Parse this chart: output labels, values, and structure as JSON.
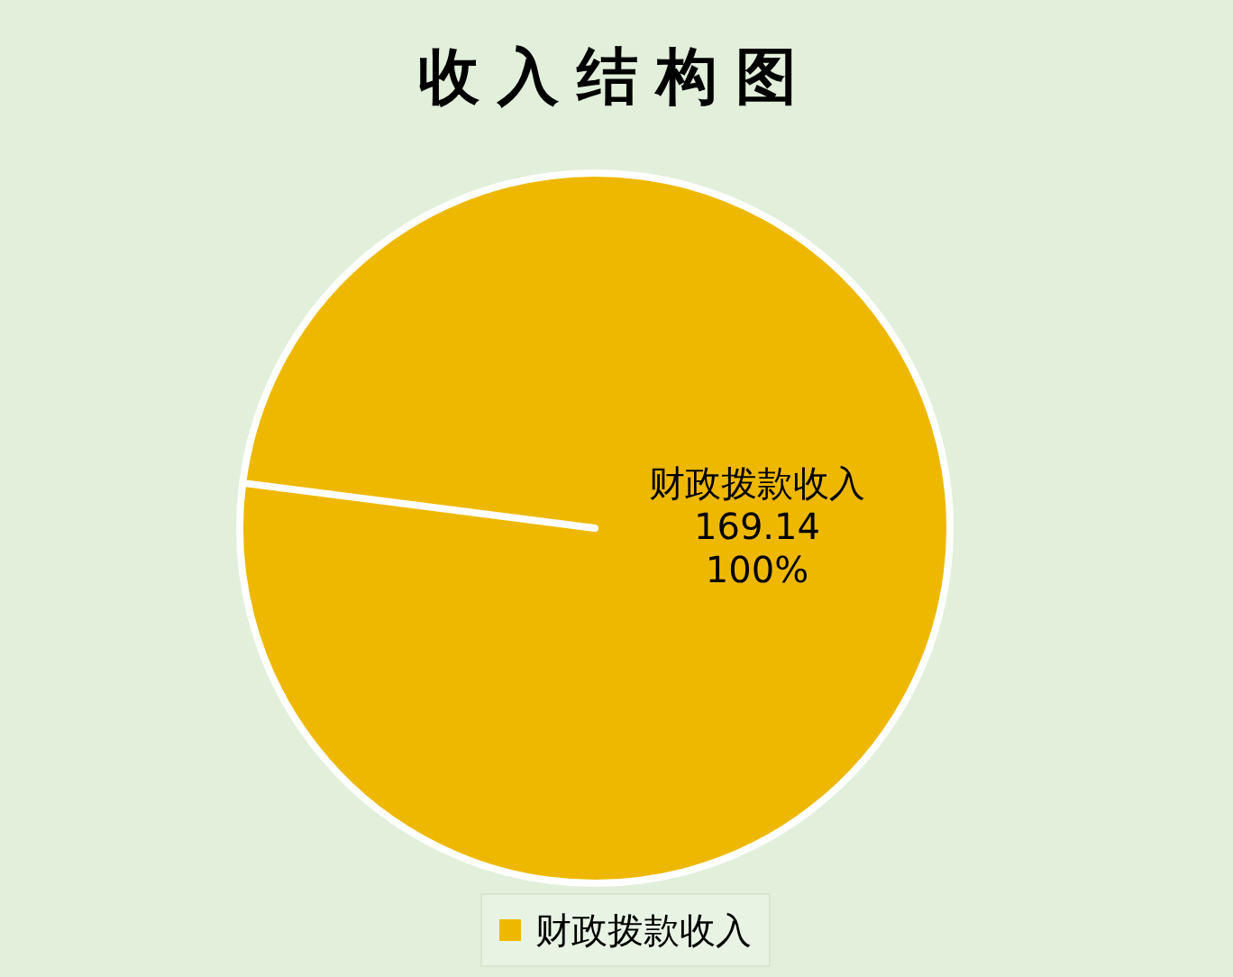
{
  "chart_data": {
    "type": "pie",
    "title": "收入结构图",
    "categories": [
      "财政拨款收入"
    ],
    "values": [
      169.14
    ],
    "data_labels": true,
    "annotations": [
      "100%"
    ],
    "colors": [
      "#eeb800"
    ],
    "legend": "bottom"
  }
}
